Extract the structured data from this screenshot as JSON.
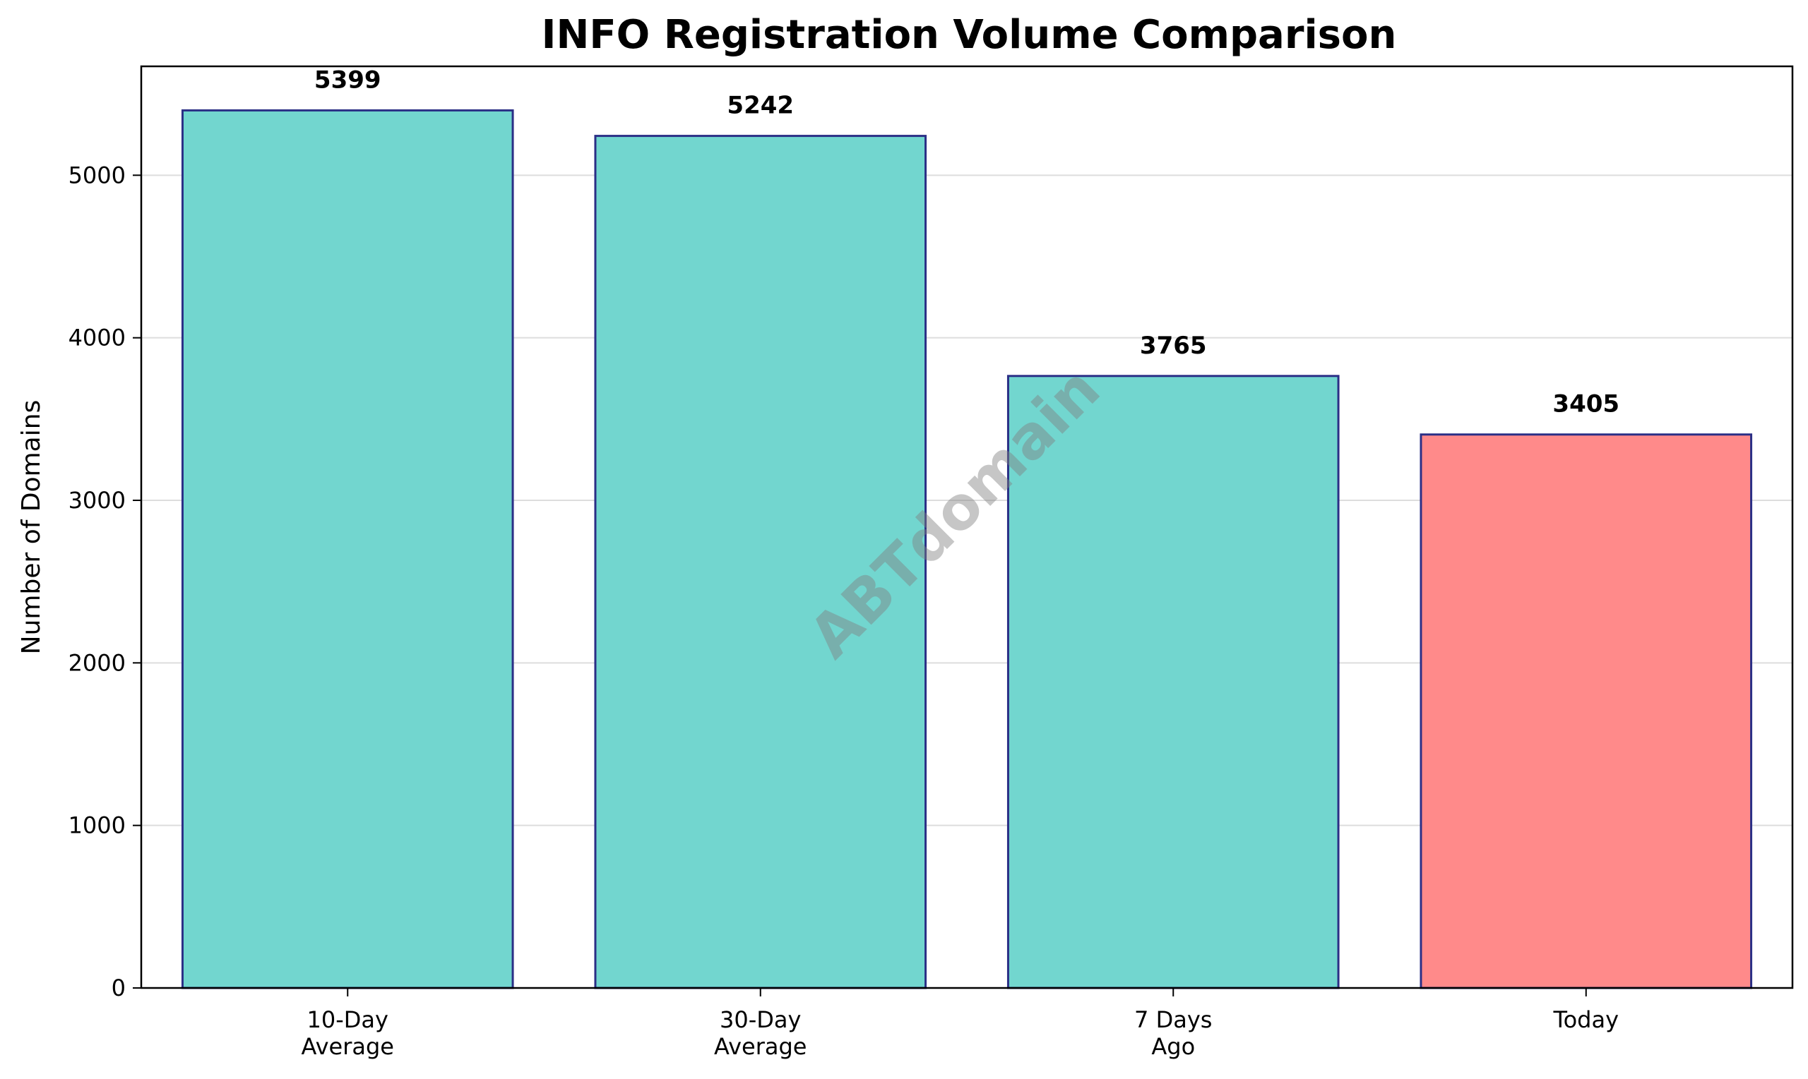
{
  "chart_data": {
    "type": "bar",
    "title": "INFO Registration Volume Comparison",
    "xlabel": "",
    "ylabel": "Number of Domains",
    "categories": [
      [
        "10-Day",
        "Average"
      ],
      [
        "30-Day",
        "Average"
      ],
      [
        "7 Days",
        "Ago"
      ],
      [
        "Today"
      ]
    ],
    "values": [
      5399,
      5242,
      3765,
      3405
    ],
    "data_labels": [
      "5399",
      "5242",
      "3765",
      "3405"
    ],
    "bar_colors": [
      "#72d6cf",
      "#72d6cf",
      "#72d6cf",
      "#ff8a8a"
    ],
    "edge_color": "#2b2f86",
    "ylim": [
      0,
      5670
    ],
    "yticks": [
      0,
      1000,
      2000,
      3000,
      4000,
      5000
    ],
    "grid": {
      "axis": "y",
      "color": "#dddddd"
    },
    "watermark": "ABTdomain"
  }
}
